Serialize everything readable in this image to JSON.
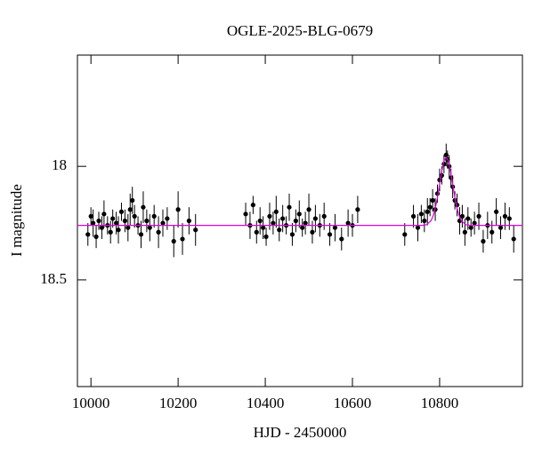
{
  "chart_data": {
    "type": "scatter",
    "title": "OGLE-2025-BLG-0679",
    "xlabel": "HJD - 2450000",
    "ylabel": "I magnitude",
    "xlim": [
      9969,
      10990
    ],
    "ylim": [
      18.97,
      17.51
    ],
    "xticks": [
      10000,
      10200,
      10400,
      10600,
      10800
    ],
    "yticks": [
      18,
      18.5
    ],
    "series": [
      {
        "type": "scatter",
        "color": "#000000",
        "x": [
          9993,
          10000,
          10005,
          10012,
          10018,
          10025,
          10030,
          10038,
          10045,
          10050,
          10058,
          10063,
          10070,
          10078,
          10085,
          10090,
          10095,
          10100,
          10108,
          10115,
          10120,
          10128,
          10135,
          10145,
          10155,
          10165,
          10175,
          10190,
          10200,
          10210,
          10225,
          10240,
          10355,
          10365,
          10372,
          10380,
          10388,
          10395,
          10402,
          10410,
          10418,
          10425,
          10432,
          10440,
          10448,
          10455,
          10462,
          10470,
          10478,
          10485,
          10492,
          10500,
          10508,
          10515,
          10525,
          10535,
          10548,
          10560,
          10575,
          10590,
          10600,
          10612,
          10720,
          10740,
          10750,
          10758,
          10765,
          10772,
          10778,
          10784,
          10790,
          10795,
          10800,
          10805,
          10810,
          10815,
          10818,
          10822,
          10826,
          10830,
          10835,
          10840,
          10846,
          10852,
          10858,
          10865,
          10872,
          10880,
          10890,
          10900,
          10910,
          10920,
          10930,
          10940,
          10950,
          10960,
          10970
        ],
        "values": [
          18.3,
          18.22,
          18.25,
          18.31,
          18.24,
          18.27,
          18.21,
          18.26,
          18.29,
          18.23,
          18.25,
          18.28,
          18.2,
          18.24,
          18.27,
          18.19,
          18.15,
          18.22,
          18.26,
          18.3,
          18.18,
          18.24,
          18.27,
          18.22,
          18.29,
          18.25,
          18.23,
          18.33,
          18.19,
          18.32,
          18.24,
          18.28,
          18.21,
          18.26,
          18.17,
          18.29,
          18.24,
          18.27,
          18.31,
          18.22,
          18.25,
          18.2,
          18.28,
          18.23,
          18.26,
          18.18,
          18.3,
          18.24,
          18.21,
          18.27,
          18.25,
          18.19,
          18.29,
          18.23,
          18.26,
          18.22,
          18.3,
          18.27,
          18.32,
          18.25,
          18.26,
          18.19,
          18.3,
          18.22,
          18.27,
          18.21,
          18.24,
          18.2,
          18.18,
          18.15,
          18.19,
          18.12,
          18.06,
          18.04,
          17.99,
          17.95,
          17.97,
          18.0,
          18.05,
          18.09,
          18.15,
          18.17,
          18.24,
          18.22,
          18.29,
          18.23,
          18.27,
          18.25,
          18.22,
          18.33,
          18.26,
          18.29,
          18.2,
          18.27,
          18.22,
          18.23,
          18.32
        ],
        "errors": [
          0.05,
          0.04,
          0.06,
          0.05,
          0.04,
          0.05,
          0.06,
          0.04,
          0.05,
          0.04,
          0.05,
          0.06,
          0.04,
          0.05,
          0.06,
          0.07,
          0.06,
          0.05,
          0.04,
          0.06,
          0.07,
          0.05,
          0.06,
          0.05,
          0.07,
          0.06,
          0.05,
          0.07,
          0.08,
          0.07,
          0.06,
          0.07,
          0.05,
          0.06,
          0.04,
          0.05,
          0.06,
          0.05,
          0.04,
          0.06,
          0.05,
          0.07,
          0.05,
          0.06,
          0.04,
          0.06,
          0.05,
          0.05,
          0.06,
          0.04,
          0.05,
          0.07,
          0.05,
          0.06,
          0.05,
          0.06,
          0.05,
          0.06,
          0.05,
          0.06,
          0.05,
          0.06,
          0.05,
          0.05,
          0.06,
          0.04,
          0.05,
          0.06,
          0.04,
          0.05,
          0.05,
          0.04,
          0.05,
          0.04,
          0.04,
          0.05,
          0.04,
          0.05,
          0.04,
          0.05,
          0.04,
          0.05,
          0.06,
          0.05,
          0.06,
          0.05,
          0.04,
          0.05,
          0.06,
          0.05,
          0.06,
          0.05,
          0.06,
          0.05,
          0.06,
          0.05,
          0.06
        ]
      },
      {
        "type": "line",
        "color": "#e000e0",
        "x": [
          9969,
          10700,
          10760,
          10770,
          10780,
          10785,
          10790,
          10795,
          10800,
          10805,
          10810,
          10815,
          10820,
          10825,
          10830,
          10835,
          10840,
          10845,
          10850,
          10860,
          10870,
          10990
        ],
        "values": [
          18.26,
          18.26,
          18.26,
          18.257,
          18.24,
          18.219,
          18.185,
          18.137,
          18.078,
          18.021,
          17.975,
          17.96,
          17.975,
          18.021,
          18.078,
          18.137,
          18.185,
          18.219,
          18.24,
          18.257,
          18.26,
          18.26
        ]
      }
    ]
  }
}
